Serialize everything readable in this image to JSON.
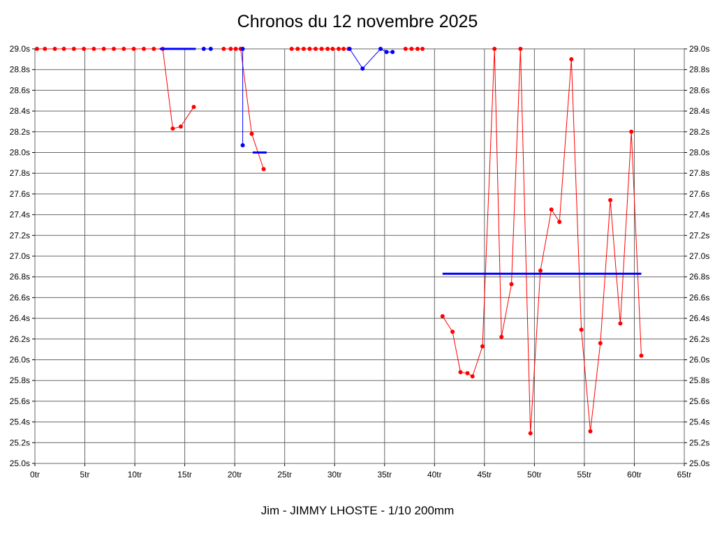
{
  "title": "Chronos du 12 novembre 2025",
  "footer": "Jim - JIMMY LHOSTE - 1/10 200mm",
  "colors": {
    "laps": "#ff0000",
    "reference": "#0000ff",
    "grid": "#666666",
    "background": "#ffffff"
  },
  "chart_data": {
    "type": "line",
    "title": "Chronos du 12 novembre 2025",
    "subtitle": "Jim - JIMMY LHOSTE - 1/10 200mm",
    "xlabel": "",
    "ylabel": "",
    "grid": true,
    "legend": "none",
    "xlim": [
      0,
      65
    ],
    "ylim": [
      25.0,
      29.0
    ],
    "x_tick_step": 5,
    "y_tick_step": 0.2,
    "x_ticks": [
      "0tr",
      "5tr",
      "10tr",
      "15tr",
      "20tr",
      "25tr",
      "30tr",
      "35tr",
      "40tr",
      "45tr",
      "50tr",
      "55tr",
      "60tr",
      "65tr"
    ],
    "y_ticks": [
      "29.0s",
      "28.8s",
      "28.6s",
      "28.4s",
      "28.2s",
      "28.0s",
      "27.8s",
      "27.6s",
      "27.4s",
      "27.2s",
      "27.0s",
      "26.8s",
      "26.6s",
      "26.4s",
      "26.2s",
      "26.0s",
      "25.8s",
      "25.6s",
      "25.4s",
      "25.2s",
      "25.0s"
    ],
    "series": [
      {
        "name": "red-laps-1",
        "color": "#ff0000",
        "width": 1,
        "markers": true,
        "points": [
          [
            0.2,
            29.0
          ],
          [
            1.0,
            29.0
          ],
          [
            2.0,
            29.0
          ],
          [
            2.9,
            29.0
          ],
          [
            3.9,
            29.0
          ],
          [
            4.9,
            29.0
          ],
          [
            5.9,
            29.0
          ],
          [
            6.9,
            29.0
          ],
          [
            7.9,
            29.0
          ],
          [
            8.9,
            29.0
          ],
          [
            9.9,
            29.0
          ],
          [
            10.9,
            29.0
          ],
          [
            11.9,
            29.0
          ],
          [
            12.8,
            29.0
          ],
          [
            13.8,
            28.23
          ],
          [
            14.6,
            28.25
          ],
          [
            15.9,
            28.44
          ]
        ]
      },
      {
        "name": "red-laps-2",
        "color": "#ff0000",
        "width": 1,
        "markers": true,
        "points": [
          [
            18.9,
            29.0
          ],
          [
            19.6,
            29.0
          ],
          [
            20.1,
            29.0
          ],
          [
            20.6,
            29.0
          ],
          [
            21.7,
            28.18
          ],
          [
            22.9,
            27.84
          ]
        ]
      },
      {
        "name": "red-laps-3",
        "color": "#ff0000",
        "width": 1,
        "markers": true,
        "points": [
          [
            25.7,
            29.0
          ],
          [
            26.3,
            29.0
          ],
          [
            26.9,
            29.0
          ],
          [
            27.5,
            29.0
          ],
          [
            28.1,
            29.0
          ],
          [
            28.7,
            29.0
          ],
          [
            29.3,
            29.0
          ],
          [
            29.8,
            29.0
          ],
          [
            30.4,
            29.0
          ],
          [
            30.9,
            29.0
          ],
          [
            31.4,
            29.0
          ]
        ]
      },
      {
        "name": "red-laps-4",
        "color": "#ff0000",
        "width": 1,
        "markers": true,
        "points": [
          [
            37.1,
            29.0
          ],
          [
            37.7,
            29.0
          ],
          [
            38.3,
            29.0
          ],
          [
            38.8,
            29.0
          ]
        ]
      },
      {
        "name": "red-laps-5",
        "color": "#ff0000",
        "width": 1,
        "markers": true,
        "points": [
          [
            40.8,
            26.42
          ],
          [
            41.8,
            26.27
          ],
          [
            42.6,
            25.88
          ],
          [
            43.3,
            25.87
          ],
          [
            43.8,
            25.84
          ],
          [
            44.8,
            26.13
          ],
          [
            46.0,
            29.0
          ],
          [
            46.7,
            26.22
          ],
          [
            47.7,
            26.73
          ],
          [
            48.6,
            29.0
          ],
          [
            49.6,
            25.29
          ],
          [
            50.6,
            26.86
          ],
          [
            51.7,
            27.45
          ],
          [
            52.5,
            27.33
          ],
          [
            53.7,
            28.9
          ],
          [
            54.7,
            26.29
          ],
          [
            55.6,
            25.31
          ],
          [
            56.6,
            26.16
          ],
          [
            57.6,
            27.54
          ],
          [
            58.6,
            26.35
          ],
          [
            59.7,
            28.2
          ],
          [
            60.7,
            26.04
          ]
        ]
      },
      {
        "name": "blue-segment-1",
        "color": "#0000ff",
        "width": 3,
        "markers": false,
        "points": [
          [
            12.5,
            29.0
          ],
          [
            16.1,
            29.0
          ]
        ]
      },
      {
        "name": "blue-dots-1",
        "color": "#0000ff",
        "width": 1,
        "markers": true,
        "points": [
          [
            16.9,
            29.0
          ],
          [
            17.6,
            29.0
          ]
        ]
      },
      {
        "name": "blue-drop",
        "color": "#0000ff",
        "width": 1,
        "markers": true,
        "points": [
          [
            20.8,
            29.0
          ],
          [
            20.8,
            28.07
          ]
        ]
      },
      {
        "name": "blue-tick",
        "color": "#0000ff",
        "width": 3,
        "markers": false,
        "points": [
          [
            21.8,
            28.0
          ],
          [
            23.2,
            28.0
          ]
        ]
      },
      {
        "name": "blue-v",
        "color": "#0000ff",
        "width": 1,
        "markers": true,
        "points": [
          [
            31.5,
            29.0
          ],
          [
            32.8,
            28.81
          ],
          [
            34.6,
            29.0
          ],
          [
            35.2,
            28.97
          ],
          [
            35.8,
            28.97
          ]
        ]
      },
      {
        "name": "blue-average",
        "color": "#0000ff",
        "width": 3,
        "markers": false,
        "points": [
          [
            40.8,
            26.83
          ],
          [
            60.7,
            26.83
          ]
        ]
      }
    ]
  }
}
